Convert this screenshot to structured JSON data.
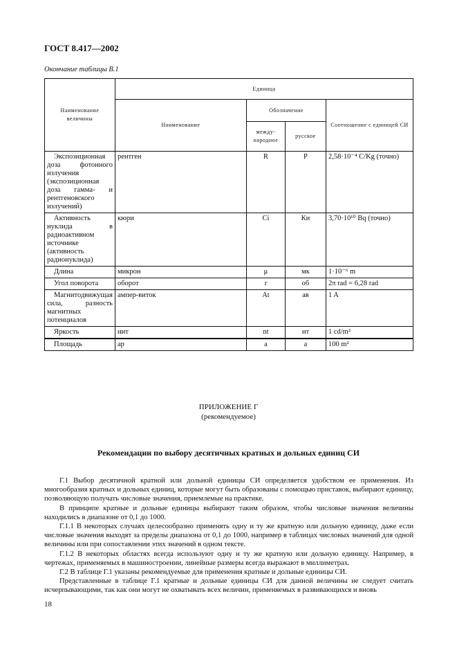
{
  "header": "ГОСТ 8.417—2002",
  "caption": "Окончание таблицы В.1",
  "table": {
    "h_name": "Наименование величины",
    "h_unit": "Единица",
    "h_unit_name": "Наименование",
    "h_designation": "Обозначение",
    "h_intl": "между-народное",
    "h_rus": "русское",
    "h_ratio": "Соотношение с единицей СИ",
    "rows": [
      {
        "quantity": "Экспозиционная доза фотонного излучения (экспозиционная доза гамма- и рентгеновского излучений)",
        "unit": "рентген",
        "intl": "R",
        "rus": "Р",
        "ratio": "2,58·10⁻⁴ C/Kg (точно)"
      },
      {
        "quantity": "Активность нуклида в радиоактивном источнике (активность радионуклида)",
        "unit": "кюри",
        "intl": "Ci",
        "rus": "Ки",
        "ratio": "3,70·10¹⁰ Bq (точно)"
      },
      {
        "quantity": "Длина",
        "unit": "микрон",
        "intl": "μ",
        "rus": "мк",
        "ratio": "1·10⁻⁶ m"
      },
      {
        "quantity": "Угол поворота",
        "unit": "оборот",
        "intl": "r",
        "rus": "об",
        "ratio": "2π rad = 6,28 rad"
      },
      {
        "quantity": "Магнитодвижущая сила, разность магнитных потенциалов",
        "unit": "ампер-виток",
        "intl": "At",
        "rus": "ав",
        "ratio": "1 A"
      },
      {
        "quantity": "Яркость",
        "unit": "нит",
        "intl": "nt",
        "rus": "нт",
        "ratio": "1 cd/m²"
      },
      {
        "quantity": "Площадь",
        "unit": "ар",
        "intl": "a",
        "rus": "а",
        "ratio": "100 m²"
      }
    ]
  },
  "appendix": {
    "label": "ПРИЛОЖЕНИЕ Г",
    "sub": "(рекомендуемое)"
  },
  "section_title": "Рекомендации по выбору десятичных кратных и дольных единиц СИ",
  "paragraphs": [
    "Г.1 Выбор десятичной кратной или дольной единицы СИ определяется удобством ее применения. Из многообразия кратных и дольных единиц, которые могут быть образованы с помощью приставок, выбирают единицу, позволяющую получать числовые значения, приемлемые на практике.",
    "В принципе кратные и дольные единицы выбирают таким образом, чтобы числовые значения величины находились в диапазоне от 0,1 до 1000.",
    "Г.1.1 В некоторых случаях целесообразно применять одну и ту же кратную или дольную единицу, даже если числовые значения выходят за пределы диапазона от 0,1 до 1000, например в таблицах числовых значений для одной величины или при сопоставлении этих значений в одном тексте.",
    "Г.1.2 В некоторых областях всегда используют одну и ту же кратную или дольную единицу. Например, в чертежах, применяемых в машиностроении, линейные размеры всегда выражают в миллиметрах.",
    "Г.2 В таблице Г.1 указаны рекомендуемые для применения кратные и дольные единицы СИ.",
    "Представленные в таблице Г.1 кратные и дольные единицы СИ для данной величины не следует считать исчерпывающими, так как они могут не охватывать всех величин, применяемых в развивающихся и вновь"
  ],
  "page_number": "18"
}
